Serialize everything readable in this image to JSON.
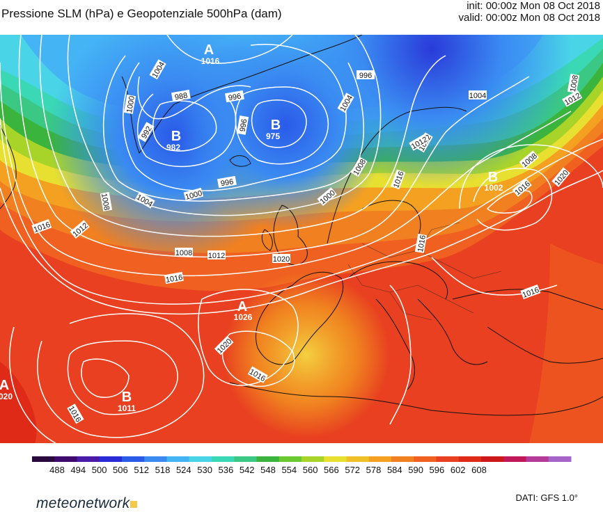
{
  "header": {
    "title": "Pressione SLM (hPa) e Geopotenziale 500hPa (dam)",
    "init": "init: 00:00z Mon 08 Oct 2018",
    "valid": "valid: 00:00z Mon 08 Oct 2018"
  },
  "pressure_centers": [
    {
      "type": "A",
      "value": "1016"
    },
    {
      "type": "B",
      "value": "982"
    },
    {
      "type": "B",
      "value": "975"
    },
    {
      "type": "B",
      "value": "1002"
    },
    {
      "type": "A",
      "value": "1026"
    },
    {
      "type": "B",
      "value": "1011"
    },
    {
      "type": "A",
      "value": "020"
    }
  ],
  "isobar_labels": [
    "1004",
    "996",
    "992",
    "1000",
    "988",
    "996",
    "996",
    "1004",
    "1012",
    "1008",
    "1008",
    "1008",
    "1012",
    "1016",
    "1020",
    "1004",
    "1000",
    "996",
    "1000",
    "1016",
    "1004",
    "1008",
    "1012",
    "1016",
    "1012",
    "1008",
    "1012",
    "1016",
    "1020",
    "1016",
    "1020",
    "1016",
    "1016",
    "1016"
  ],
  "colorbar": {
    "unit": "dam",
    "ticks": [
      "488",
      "494",
      "500",
      "506",
      "512",
      "518",
      "524",
      "530",
      "536",
      "542",
      "548",
      "554",
      "560",
      "566",
      "572",
      "578",
      "584",
      "590",
      "596",
      "602",
      "608"
    ],
    "colors": [
      "#2a0a3e",
      "#3e0a6e",
      "#4a1aa8",
      "#2a2ad8",
      "#2a5ae8",
      "#3a8af2",
      "#45b4f5",
      "#4ad4e8",
      "#3ad8b4",
      "#3ac884",
      "#3ab43c",
      "#6ac830",
      "#a8d42a",
      "#e8e030",
      "#f0c028",
      "#f4a020",
      "#f08020",
      "#f06020",
      "#e84020",
      "#e02a18",
      "#cc1818",
      "#c01858",
      "#b43c98",
      "#a464c8"
    ]
  },
  "footer": {
    "brand": "meteonetwork",
    "source": "DATI: GFS 1.0°"
  }
}
